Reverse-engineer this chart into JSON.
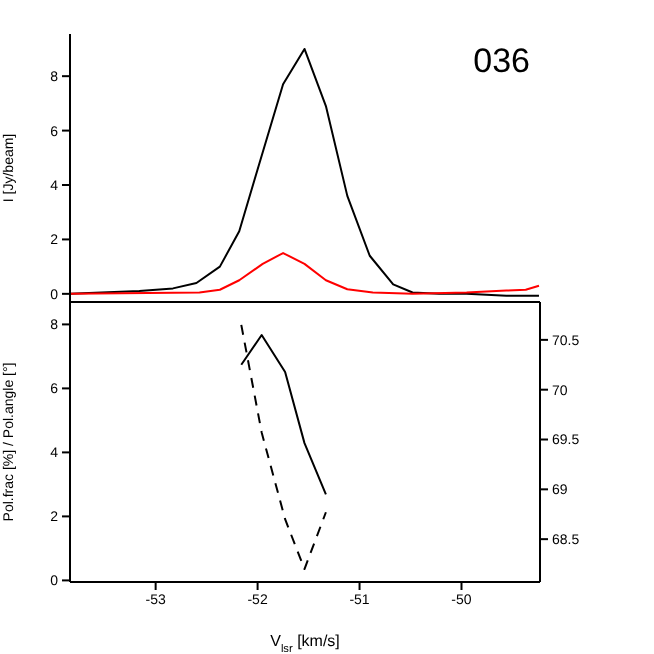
{
  "chart_data": [
    {
      "type": "line",
      "annotations": [
        "036"
      ],
      "ylabel": "I [Jy/beam]",
      "xlim": [
        -53.84,
        -49.23
      ],
      "xticks": [
        -53,
        -52,
        -51,
        -50
      ],
      "ylim": [
        -0.3,
        9.55
      ],
      "yticks": [
        0,
        2,
        4,
        6,
        8
      ],
      "tick_labels": "y",
      "series": [
        {
          "color": "#000000",
          "x": [
            -53.84,
            -53.16,
            -52.83,
            -52.6,
            -52.37,
            -52.18,
            -51.99,
            -51.75,
            -51.54,
            -51.33,
            -51.12,
            -50.9,
            -50.67,
            -50.48,
            -50.22,
            -49.95,
            -49.56,
            -49.24
          ],
          "values": [
            0,
            0.1,
            0.2,
            0.4,
            1.0,
            2.3,
            4.7,
            7.7,
            9.0,
            6.9,
            3.6,
            1.4,
            0.35,
            0.05,
            0,
            0,
            -0.07,
            -0.07
          ]
        },
        {
          "color": "#ff0000",
          "x": [
            -53.84,
            -52.57,
            -52.37,
            -52.18,
            -51.95,
            -51.75,
            -51.54,
            -51.33,
            -51.12,
            -50.87,
            -50.48,
            -49.95,
            -49.56,
            -49.37,
            -49.24
          ],
          "values": [
            0,
            0.05,
            0.15,
            0.5,
            1.1,
            1.5,
            1.1,
            0.5,
            0.17,
            0.05,
            0,
            0.05,
            0.12,
            0.15,
            0.3
          ]
        }
      ]
    },
    {
      "type": "line",
      "xlabel": "V$_{lsr}$ [km/s]",
      "ylabel": "Pol.frac [%] / Pol.angle [°]",
      "xlim": [
        -53.84,
        -49.23
      ],
      "xticks": [
        -53,
        -52,
        -51,
        -50
      ],
      "ylim": [
        -0.05,
        8.7
      ],
      "yticks": [
        0,
        2,
        4,
        6,
        8
      ],
      "y2lim": [
        68.07,
        70.88
      ],
      "y2ticks": [
        68.5,
        69,
        69.5,
        70,
        70.5
      ],
      "series": [
        {
          "color": "#000000",
          "line_style": "solid",
          "x": [
            -52.16,
            -51.96,
            -51.73,
            -51.54,
            -51.33
          ],
          "values": [
            6.74,
            7.67,
            6.51,
            4.29,
            2.69
          ]
        },
        {
          "color": "#000000",
          "line_style": "dashed",
          "axis": "y2",
          "x": [
            -52.16,
            -51.96,
            -51.73,
            -51.54,
            -51.33
          ],
          "values": [
            70.65,
            69.57,
            68.7,
            68.2,
            68.77
          ]
        }
      ]
    }
  ]
}
